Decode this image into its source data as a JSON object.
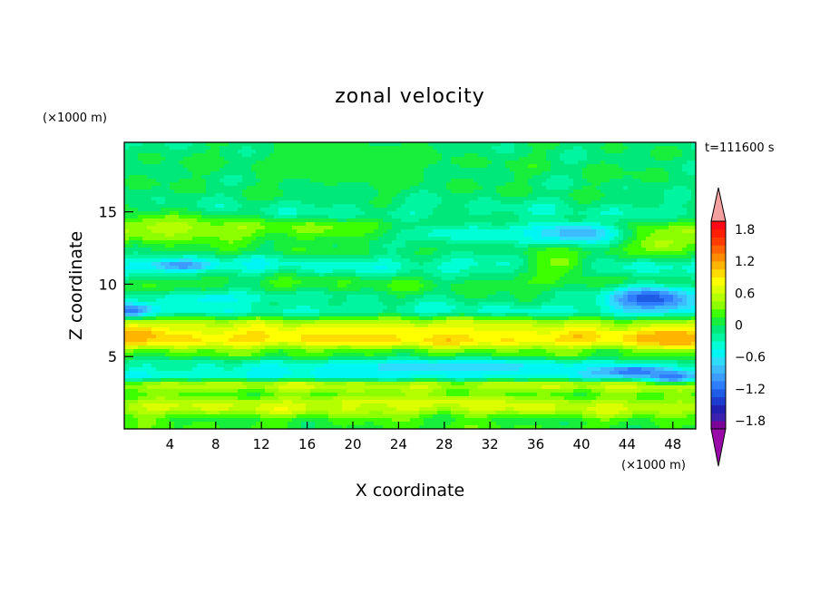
{
  "chart_data": {
    "type": "heatmap",
    "title": "zonal velocity",
    "time_label": "t=111600 s",
    "xlabel": "X coordinate",
    "ylabel": "Z coordinate",
    "x_unit": "(×1000 m)",
    "y_unit": "(×1000 m)",
    "xlim": [
      0,
      50
    ],
    "ylim": [
      0,
      19.8
    ],
    "x_ticks": [
      4,
      8,
      12,
      16,
      20,
      24,
      28,
      32,
      36,
      40,
      44,
      48
    ],
    "y_ticks": [
      5,
      10,
      15
    ],
    "colorbar": {
      "levels": [
        -1.95,
        -1.8,
        -1.65,
        -1.5,
        -1.35,
        -1.2,
        -1.05,
        -0.9,
        -0.75,
        -0.6,
        -0.45,
        -0.3,
        -0.15,
        0,
        0.15,
        0.3,
        0.45,
        0.6,
        0.75,
        0.9,
        1.05,
        1.2,
        1.35,
        1.5,
        1.65,
        1.8,
        1.95
      ],
      "tick_labels": [
        "1.8",
        "1.2",
        "0.6",
        "0",
        "−0.6",
        "−1.2",
        "−1.8"
      ],
      "tick_values": [
        1.8,
        1.2,
        0.6,
        0,
        -0.6,
        -1.2,
        -1.8
      ],
      "colors": [
        "#7b0096",
        "#3b1fae",
        "#1f1fb4",
        "#1f3cd0",
        "#1f5ce6",
        "#2e7dff",
        "#3c9cff",
        "#3cbcff",
        "#2fdcff",
        "#00f5f5",
        "#00ffd4",
        "#00f5a0",
        "#00e87a",
        "#18ee3c",
        "#3cff00",
        "#8cff00",
        "#b4ff00",
        "#dcff00",
        "#ffff00",
        "#ffdc00",
        "#ffb400",
        "#ff8c00",
        "#ff6400",
        "#ff3c00",
        "#ff2000",
        "#ff0a14"
      ],
      "under_color": "#9a0aa8",
      "over_color": "#f4a0a0"
    },
    "bands": [
      {
        "z": 0.5,
        "u": 0.15
      },
      {
        "z": 1.5,
        "u": 0.6
      },
      {
        "z": 2.3,
        "u": 0.25
      },
      {
        "z": 3.0,
        "u": 0.55
      },
      {
        "z": 3.7,
        "u": -0.45
      },
      {
        "z": 4.4,
        "u": -0.2
      },
      {
        "z": 5.2,
        "u": 0.2
      },
      {
        "z": 6.2,
        "u": 0.95
      },
      {
        "z": 7.2,
        "u": 0.55
      },
      {
        "z": 8.2,
        "u": -0.3
      },
      {
        "z": 9.0,
        "u": -0.1
      },
      {
        "z": 10.0,
        "u": 0.1
      },
      {
        "z": 11.3,
        "u": -0.35
      },
      {
        "z": 12.5,
        "u": 0.05
      },
      {
        "z": 13.8,
        "u": 0.35
      },
      {
        "z": 15.0,
        "u": -0.2
      },
      {
        "z": 16.5,
        "u": -0.05
      },
      {
        "z": 18.0,
        "u": -0.02
      },
      {
        "z": 19.8,
        "u": -0.08
      }
    ],
    "features": [
      {
        "x": 1.5,
        "z": 6.5,
        "rx": 3,
        "rz": 0.6,
        "u": 1.1
      },
      {
        "x": 48,
        "z": 6.3,
        "rx": 3,
        "rz": 0.7,
        "u": 1.2
      },
      {
        "x": 0.5,
        "z": 8.2,
        "rx": 2,
        "rz": 0.5,
        "u": -1.2
      },
      {
        "x": 46,
        "z": 9.0,
        "rx": 4,
        "rz": 0.9,
        "u": -1.3
      },
      {
        "x": 39,
        "z": 13.5,
        "rx": 5,
        "rz": 0.8,
        "u": -1.1
      },
      {
        "x": 44.5,
        "z": 4.0,
        "rx": 3,
        "rz": 0.4,
        "u": -1.3
      },
      {
        "x": 48,
        "z": 3.6,
        "rx": 2,
        "rz": 0.4,
        "u": -1.2
      },
      {
        "x": 5,
        "z": 11.3,
        "rx": 3,
        "rz": 0.4,
        "u": -1.0
      },
      {
        "x": 28,
        "z": 4.3,
        "rx": 14,
        "rz": 0.5,
        "u": -0.7
      },
      {
        "x": 38,
        "z": 11.5,
        "rx": 3,
        "rz": 1.2,
        "u": 0.35
      },
      {
        "x": 4,
        "z": 14.0,
        "rx": 4,
        "rz": 1.0,
        "u": 0.5
      },
      {
        "x": 47,
        "z": 12.8,
        "rx": 3,
        "rz": 0.8,
        "u": 0.5
      },
      {
        "x": 22,
        "z": 6.7,
        "rx": 10,
        "rz": 0.5,
        "u": 0.9
      },
      {
        "x": 25,
        "z": 1.9,
        "rx": 14,
        "rz": 0.4,
        "u": 0.65
      },
      {
        "x": 20,
        "z": 18.5,
        "rx": 8,
        "rz": 1.8,
        "u": 0.1
      },
      {
        "x": 8,
        "z": 9.0,
        "rx": 6,
        "rz": 0.5,
        "u": -0.5
      },
      {
        "x": 30,
        "z": 13.5,
        "rx": 8,
        "rz": 0.8,
        "u": -0.45
      }
    ]
  }
}
